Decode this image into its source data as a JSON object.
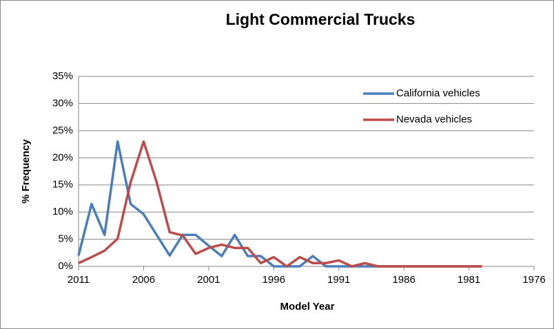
{
  "chart_data": {
    "type": "line",
    "title": "Light Commercial Trucks",
    "xlabel": "Model Year",
    "ylabel": "% Frequency",
    "x": [
      2011,
      2010,
      2009,
      2008,
      2007,
      2006,
      2005,
      2004,
      2003,
      2002,
      2001,
      2000,
      1999,
      1998,
      1997,
      1996,
      1995,
      1994,
      1993,
      1992,
      1991,
      1990,
      1989,
      1988,
      1987,
      1986,
      1985,
      1984,
      1983,
      1982,
      1981,
      1980
    ],
    "series": [
      {
        "name": "California vehicles",
        "color": "#4a7ebb",
        "values": [
          2,
          11.5,
          5.8,
          23,
          11.5,
          9.6,
          5.8,
          2,
          5.8,
          5.8,
          3.8,
          1.9,
          5.8,
          1.9,
          1.9,
          0,
          0,
          0,
          1.9,
          0,
          0,
          0,
          0,
          0,
          0,
          0,
          0,
          0,
          0,
          0,
          0,
          0
        ]
      },
      {
        "name": "Nevada vehicles",
        "color": "#be4b48",
        "values": [
          0.6,
          1.7,
          2.9,
          5.1,
          15.5,
          23,
          15.5,
          6.3,
          5.7,
          2.3,
          3.4,
          4,
          3.4,
          3.4,
          0.6,
          1.7,
          0,
          1.7,
          0.6,
          0.6,
          1.1,
          0,
          0.6,
          0,
          0,
          0,
          0,
          0,
          0,
          0,
          0,
          0
        ]
      }
    ],
    "xlim": [
      2011,
      1976
    ],
    "xticks": [
      2011,
      2006,
      2001,
      1996,
      1991,
      1986,
      1981,
      1976
    ],
    "ylim": [
      0,
      35
    ],
    "yticks": [
      {
        "value": 0,
        "label": "0%"
      },
      {
        "value": 5,
        "label": "5%"
      },
      {
        "value": 10,
        "label": "10%"
      },
      {
        "value": 15,
        "label": "15%"
      },
      {
        "value": 20,
        "label": "20%"
      },
      {
        "value": 25,
        "label": "25%"
      },
      {
        "value": 30,
        "label": "30%"
      },
      {
        "value": 35,
        "label": "35%"
      }
    ],
    "grid": true,
    "legend": "upper right"
  }
}
